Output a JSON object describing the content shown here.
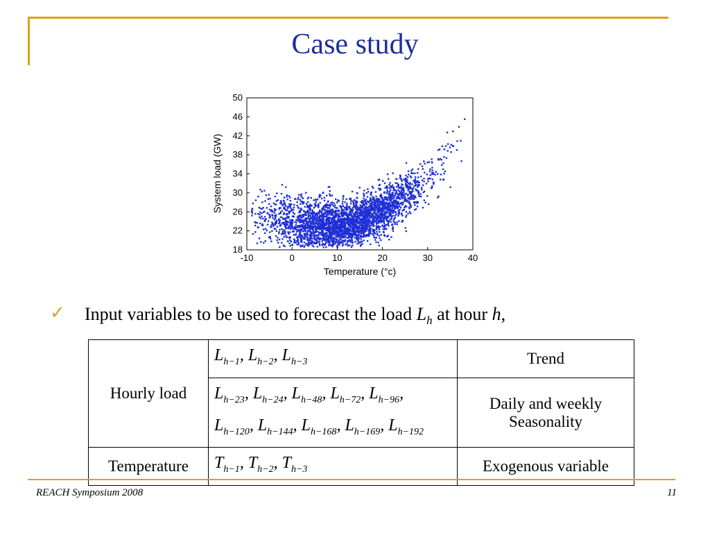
{
  "slide": {
    "title": "Case study",
    "footer_left": "REACH Symposium 2008",
    "page_number": "11",
    "accent_color": "#d9a21b",
    "title_color": "#1c2e9e"
  },
  "bullet": {
    "icon": "check-icon",
    "text_prefix": "Input variables to be used to forecast the load ",
    "var_L": "L",
    "var_L_sub": "h",
    "text_mid": " at hour ",
    "var_h": "h",
    "text_suffix": ","
  },
  "table": {
    "rows": [
      {
        "category": "Hourly load",
        "variables": "L_{h−1}, L_{h−2}, L_{h−3}",
        "type": "Trend"
      },
      {
        "category": "Hourly load",
        "variables": "L_{h−23}, L_{h−24}, L_{h−48}, L_{h−72}, L_{h−96}, L_{h−120}, L_{h−144}, L_{h−168}, L_{h−169}, L_{h−192}",
        "type": "Daily and weekly Seasonality"
      },
      {
        "category": "Temperature",
        "variables": "T_{h−1}, T_{h−2}, T_{h−3}",
        "type": "Exogenous variable"
      }
    ]
  },
  "chart_data": {
    "type": "scatter",
    "title": "",
    "xlabel": "Temperature (°c)",
    "ylabel": "System load (GW)",
    "xlim": [
      -10,
      40
    ],
    "ylim": [
      18,
      50
    ],
    "xticks": [
      -10,
      0,
      10,
      20,
      30,
      40
    ],
    "yticks": [
      18,
      22,
      26,
      30,
      34,
      38,
      42,
      46,
      50
    ],
    "grid": false,
    "point_color": "#1f2fd6",
    "description_curve": {
      "x": [
        -8,
        -5,
        0,
        5,
        10,
        15,
        20,
        25,
        30,
        35,
        38
      ],
      "y": [
        25,
        24.5,
        23.5,
        23,
        22.5,
        24,
        26,
        29,
        33,
        39,
        43
      ]
    }
  }
}
